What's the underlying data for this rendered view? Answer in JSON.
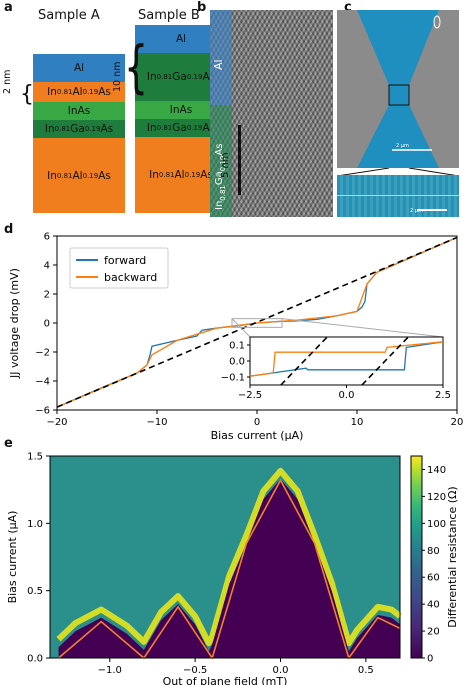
{
  "panel_a": {
    "label": "a",
    "sample_a": {
      "title": "Sample A",
      "layers": [
        {
          "name": "Al",
          "color": "#2f7fc1"
        },
        {
          "name": "In0.81Al0.19As",
          "color": "#f07d1e"
        },
        {
          "name": "InAs",
          "color": "#38a844"
        },
        {
          "name": "In0.81Ga0.19As",
          "color": "#1e7d3c"
        },
        {
          "name": "In0.81Al0.19As",
          "color": "#f07d1e"
        }
      ]
    },
    "sample_b": {
      "title": "Sample B",
      "layers": [
        {
          "name": "Al",
          "color": "#2f7fc1"
        },
        {
          "name": "In0.81Ga0.19As",
          "color": "#1e7d3c"
        },
        {
          "name": "InAs",
          "color": "#38a844"
        },
        {
          "name": "In0.81Ga0.19As",
          "color": "#1e7d3c"
        },
        {
          "name": "In0.81Al0.19As",
          "color": "#f07d1e"
        }
      ]
    },
    "brace_a": "2 nm",
    "brace_b": "10 nm"
  },
  "panel_b": {
    "label": "b",
    "top_label": "Al",
    "bottom_label": "In0.81Ga0.19As",
    "scale": "5 nm"
  },
  "panel_c": {
    "label": "c",
    "scale1": "2 μm",
    "scale2": "2 μm"
  },
  "panel_d": {
    "label": "d"
  },
  "panel_e": {
    "label": "e"
  },
  "chart_data": [
    {
      "type": "line",
      "panel": "d",
      "xlabel": "Bias current (μA)",
      "ylabel": "JJ voltage drop (mV)",
      "xlim": [
        -20,
        20
      ],
      "ylim": [
        -6,
        6
      ],
      "xticks": [
        "−20",
        "−10",
        "0",
        "10",
        "20"
      ],
      "yticks": [
        "−6",
        "−4",
        "−2",
        "0",
        "2",
        "4",
        "6"
      ],
      "legend": {
        "position": "top-left",
        "entries": [
          "forward",
          "backward"
        ]
      },
      "series": [
        {
          "name": "forward",
          "color": "#1f77b4",
          "x": [
            -20,
            -16,
            -12,
            -11,
            -10.7,
            -10.5,
            -8,
            -6,
            -5.5,
            -4,
            -2,
            0,
            2,
            4,
            6,
            8,
            10,
            10.5,
            10.8,
            11,
            12,
            16,
            20
          ],
          "y": [
            -5.8,
            -4.6,
            -3.45,
            -2.9,
            -2.2,
            -1.6,
            -1.2,
            -0.9,
            -0.5,
            -0.35,
            -0.2,
            0,
            0.1,
            0.15,
            0.25,
            0.5,
            0.8,
            1.1,
            1.5,
            2.7,
            3.5,
            4.7,
            5.9
          ]
        },
        {
          "name": "backward",
          "color": "#ff7f0e",
          "x": [
            -20,
            -12,
            -11,
            -10.5,
            -8,
            -4,
            0,
            4,
            8,
            10,
            11,
            12,
            20
          ],
          "y": [
            -5.8,
            -3.45,
            -2.9,
            -2.2,
            -1.2,
            -0.35,
            0,
            0.2,
            0.5,
            0.8,
            2.7,
            3.5,
            5.9
          ]
        },
        {
          "name": "ohmic",
          "color": "#000000",
          "style": "dashed",
          "x": [
            -20,
            20
          ],
          "y": [
            -5.8,
            5.9
          ]
        }
      ],
      "inset": {
        "xlim": [
          -2.5,
          2.5
        ],
        "ylim": [
          -0.15,
          0.15
        ],
        "xticks": [
          "−2.5",
          "0.0",
          "2.5"
        ],
        "yticks": [
          "−0.1",
          "0.0",
          "0.1"
        ],
        "series": [
          {
            "name": "forward",
            "color": "#1f77b4",
            "x": [
              -2.5,
              -1.05,
              -1.0,
              1.5,
              1.55,
              2.5
            ],
            "y": [
              -0.095,
              -0.045,
              -0.055,
              -0.055,
              0.085,
              0.12
            ]
          },
          {
            "name": "backward",
            "color": "#ff7f0e",
            "x": [
              -2.5,
              -1.9,
              -1.85,
              1.0,
              1.05,
              2.5
            ],
            "y": [
              -0.095,
              -0.075,
              0.055,
              0.055,
              0.085,
              0.12
            ]
          },
          {
            "name": "dash1",
            "color": "#000000",
            "style": "dashed",
            "x": [
              -1.7,
              -0.5
            ],
            "y": [
              -0.15,
              0.15
            ]
          },
          {
            "name": "dash2",
            "color": "#000000",
            "style": "dashed",
            "x": [
              0.4,
              1.6
            ],
            "y": [
              -0.15,
              0.15
            ]
          }
        ]
      }
    },
    {
      "type": "heatmap",
      "panel": "e",
      "xlabel": "Out of plane field (mT)",
      "ylabel": "Bias current (μA)",
      "colorbar_label": "Differential resistance (Ω)",
      "xlim": [
        -1.35,
        0.7
      ],
      "ylim": [
        0,
        1.5
      ],
      "xticks": [
        "−1.0",
        "−0.5",
        "0.0",
        "0.5"
      ],
      "yticks": [
        "0.0",
        "0.5",
        "1.0",
        "1.5"
      ],
      "colorbar_ticks": [
        "0",
        "20",
        "40",
        "60",
        "80",
        "100",
        "120",
        "140"
      ],
      "colorbar_range": [
        0,
        150
      ],
      "lobe_nodes_mT": [
        -1.3,
        -0.8,
        -0.4,
        0.4,
        0.75
      ],
      "fit_curve": {
        "color": "#f08030",
        "x": [
          -1.3,
          -1.05,
          -0.8,
          -0.6,
          -0.4,
          -0.2,
          0.0,
          0.2,
          0.4,
          0.57,
          0.7
        ],
        "y": [
          0.0,
          0.27,
          0.0,
          0.38,
          0.0,
          0.85,
          1.32,
          0.85,
          0.0,
          0.3,
          0.22
        ]
      },
      "critical_current": {
        "x": [
          -1.3,
          -1.2,
          -1.05,
          -0.9,
          -0.8,
          -0.7,
          -0.6,
          -0.5,
          -0.42,
          -0.4,
          -0.3,
          -0.2,
          -0.1,
          0.0,
          0.1,
          0.2,
          0.3,
          0.4,
          0.45,
          0.57,
          0.65,
          0.7
        ],
        "y": [
          0.08,
          0.2,
          0.3,
          0.18,
          0.06,
          0.28,
          0.4,
          0.25,
          0.05,
          0.1,
          0.55,
          0.85,
          1.18,
          1.33,
          1.18,
          0.85,
          0.5,
          0.05,
          0.15,
          0.32,
          0.3,
          0.25
        ]
      }
    }
  ]
}
